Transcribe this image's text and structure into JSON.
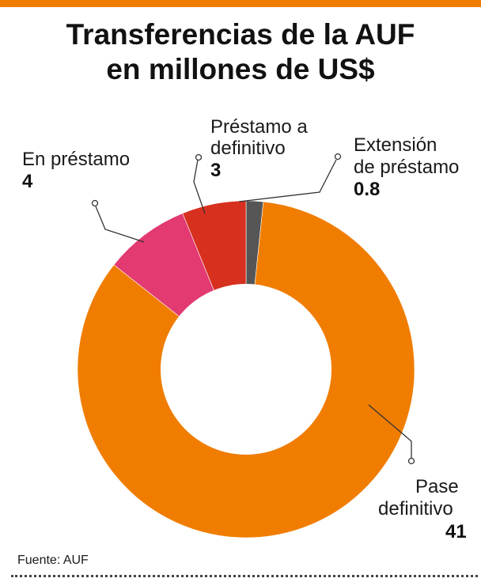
{
  "header": {
    "title_line1": "Transferencias de la AUF",
    "title_line2": "en millones de US$"
  },
  "colors": {
    "accent": "#f07d00",
    "pase_definitivo": "#f07d00",
    "en_prestamo": "#e23a71",
    "prestamo_a_definitivo": "#d7301f",
    "extension_de_prestamo": "#555555"
  },
  "chart_data": {
    "type": "pie",
    "title": "Transferencias de la AUF en millones de US$",
    "unit": "millones de US$",
    "donut": true,
    "slices": [
      {
        "key": "extension",
        "label_lines": [
          "Extensión",
          "de préstamo"
        ],
        "value": 0.8,
        "value_label": "0.8",
        "color": "#555555"
      },
      {
        "key": "pase",
        "label_lines": [
          "Pase",
          "definitivo"
        ],
        "value": 41,
        "value_label": "41",
        "color": "#f07d00"
      },
      {
        "key": "en_prestamo",
        "label_lines": [
          "En préstamo"
        ],
        "value": 4,
        "value_label": "4",
        "color": "#e23a71"
      },
      {
        "key": "prestamo_def",
        "label_lines": [
          "Préstamo a",
          "definitivo"
        ],
        "value": 3,
        "value_label": "3",
        "color": "#d7301f"
      }
    ]
  },
  "source": {
    "label": "Fuente:",
    "value": "AUF"
  }
}
